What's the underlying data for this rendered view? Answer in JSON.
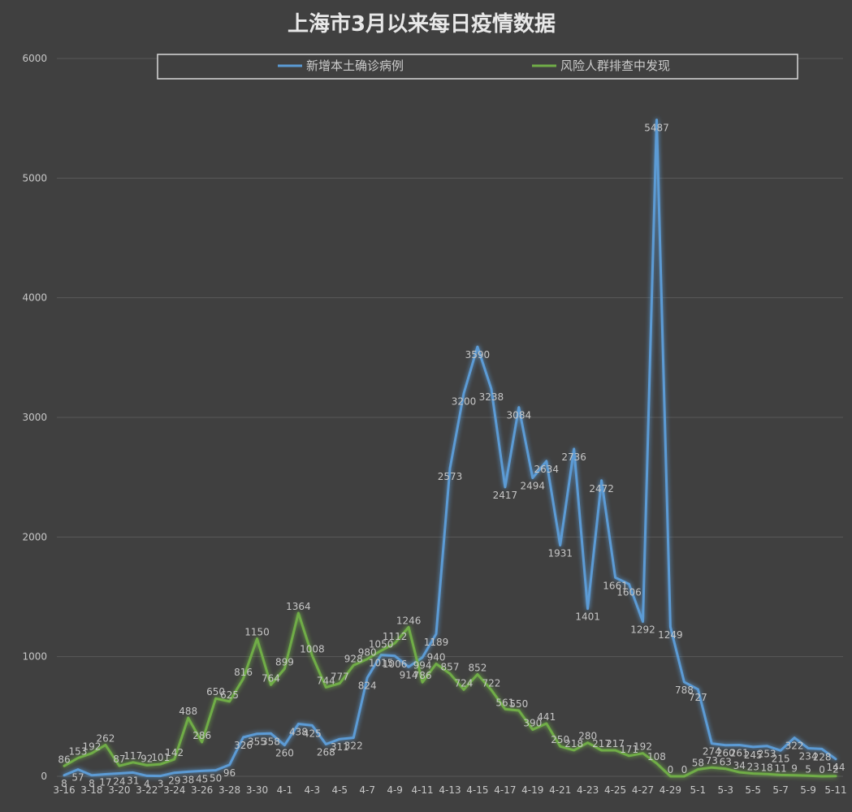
{
  "chart_data": {
    "type": "line",
    "title": "上海市3月以来每日疫情数据",
    "ylim": [
      0,
      6000
    ],
    "yticks": [
      0,
      1000,
      2000,
      3000,
      4000,
      5000,
      6000
    ],
    "grid": true,
    "legend_position": "top",
    "categories": [
      "3-16",
      "3-17",
      "3-18",
      "3-19",
      "3-20",
      "3-21",
      "3-22",
      "3-23",
      "3-24",
      "3-25",
      "3-26",
      "3-27",
      "3-28",
      "3-29",
      "3-30",
      "3-31",
      "4-1",
      "4-2",
      "4-3",
      "4-4",
      "4-5",
      "4-6",
      "4-7",
      "4-8",
      "4-9",
      "4-10",
      "4-11",
      "4-12",
      "4-13",
      "4-14",
      "4-15",
      "4-16",
      "4-17",
      "4-18",
      "4-19",
      "4-20",
      "4-21",
      "4-22",
      "4-23",
      "4-24",
      "4-25",
      "4-26",
      "4-27",
      "4-28",
      "4-29",
      "4-30",
      "5-1",
      "5-2",
      "5-3",
      "5-4",
      "5-5",
      "5-6",
      "5-7",
      "5-8",
      "5-9",
      "5-10",
      "5-11"
    ],
    "xtick_labels": [
      "3-16",
      "3-18",
      "3-20",
      "3-22",
      "3-24",
      "3-26",
      "3-28",
      "3-30",
      "4-1",
      "4-3",
      "4-5",
      "4-7",
      "4-9",
      "4-11",
      "4-13",
      "4-15",
      "4-17",
      "4-19",
      "4-21",
      "4-23",
      "4-25",
      "4-27",
      "4-29",
      "5-1",
      "5-3",
      "5-5",
      "5-7",
      "5-9",
      "5-11"
    ],
    "series": [
      {
        "name": "新增本土确诊病例",
        "color": "#5b9bd5",
        "values": [
          8,
          57,
          8,
          17,
          24,
          31,
          4,
          3,
          29,
          38,
          45,
          50,
          96,
          326,
          355,
          358,
          260,
          438,
          425,
          268,
          311,
          322,
          824,
          1015,
          1006,
          914,
          994,
          1189,
          2573,
          3200,
          3590,
          3238,
          2417,
          3084,
          2494,
          2634,
          1931,
          2736,
          1401,
          2472,
          1661,
          1606,
          1292,
          5487,
          1249,
          788,
          727,
          274,
          260,
          261,
          245,
          253,
          215,
          322,
          234,
          228,
          144
        ]
      },
      {
        "name": "风险人群排查中发现",
        "color": "#70ad47",
        "values": [
          86,
          153,
          192,
          262,
          87,
          117,
          92,
          101,
          142,
          488,
          286,
          650,
          625,
          816,
          1150,
          764,
          899,
          1364,
          1008,
          744,
          777,
          928,
          980,
          1050,
          1112,
          1246,
          786,
          940,
          857,
          724,
          852,
          722,
          561,
          550,
          390,
          441,
          250,
          218,
          280,
          217,
          217,
          171,
          192,
          108,
          0,
          0,
          58,
          73,
          63,
          34,
          23,
          18,
          11,
          9,
          5,
          0,
          2
        ]
      }
    ]
  }
}
